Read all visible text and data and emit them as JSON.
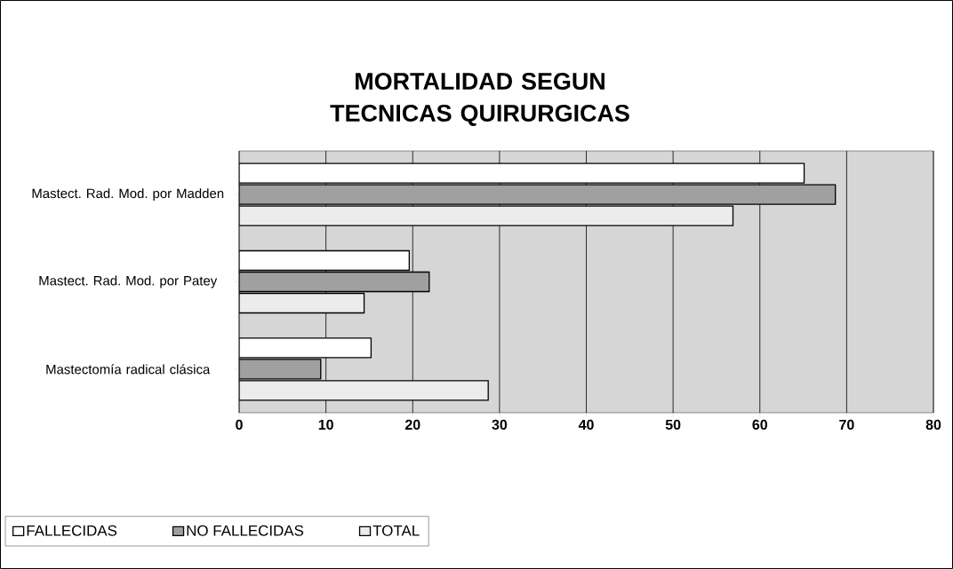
{
  "chart_data": {
    "type": "bar",
    "orientation": "horizontal",
    "title": "MORTALIDAD SEGUN TECNICAS QUIRURGICAS",
    "categories": [
      "Mastect. Rad. Mod. por Madden",
      "Mastect. Rad. Mod. por Patey",
      "Mastectomía radical clásica"
    ],
    "series": [
      {
        "name": "FALLECIDAS",
        "color": "#ffffff",
        "values": [
          65.1,
          19.6,
          15.2
        ]
      },
      {
        "name": "NO FALLECIDAS",
        "color": "#a0a0a0",
        "values": [
          68.7,
          21.9,
          9.4
        ]
      },
      {
        "name": "TOTAL",
        "color": "#ececec",
        "values": [
          56.9,
          14.4,
          28.7
        ]
      }
    ],
    "xlim": [
      0,
      80
    ],
    "xticks": [
      0,
      10,
      20,
      30,
      40,
      50,
      60,
      70,
      80
    ],
    "grid": "x",
    "legend": "bottom"
  }
}
